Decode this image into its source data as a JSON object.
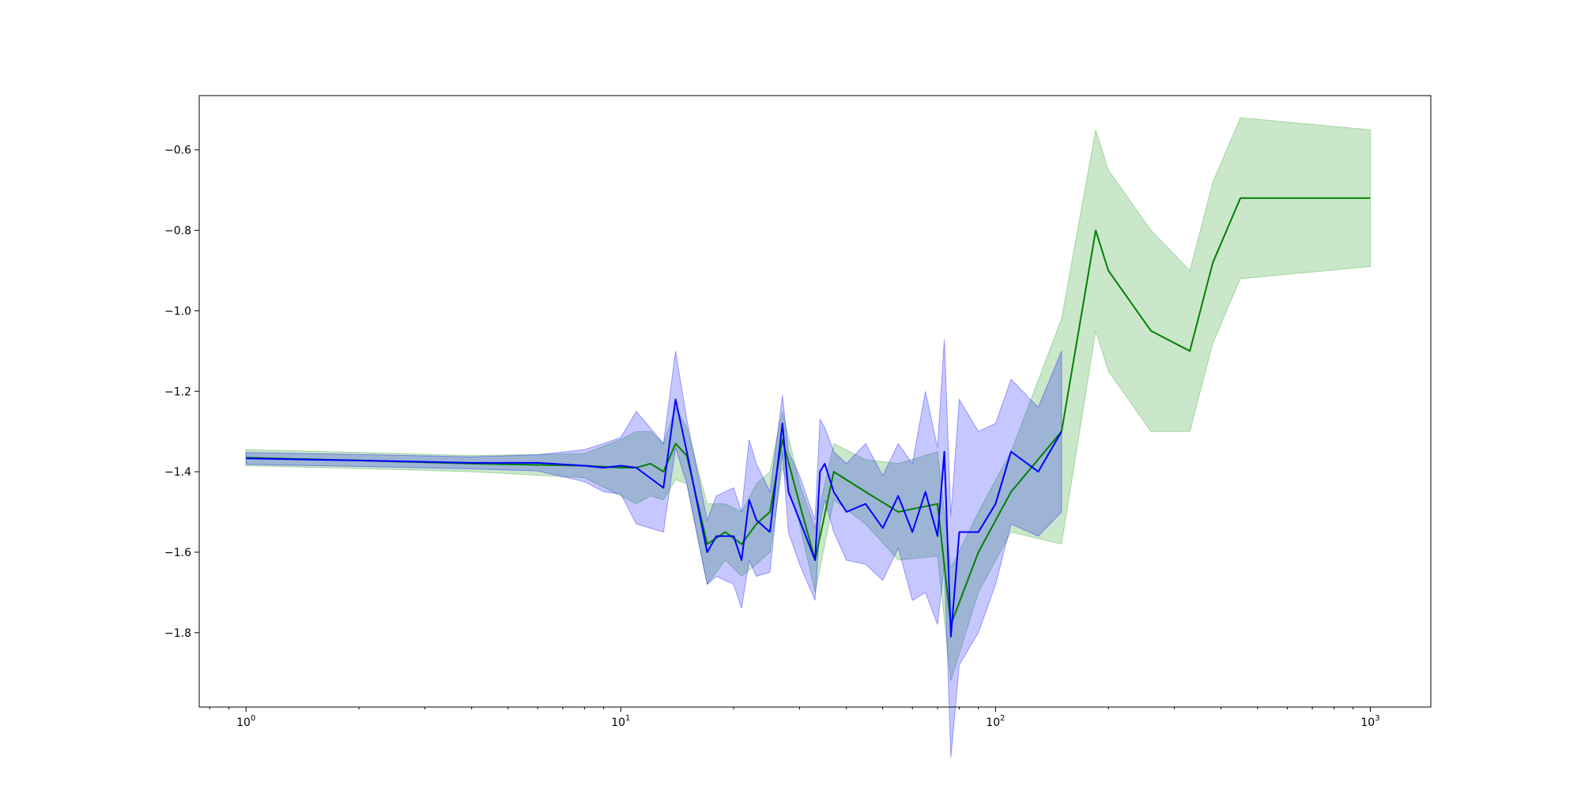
{
  "chart_data": {
    "type": "line",
    "title": "",
    "xlabel": "",
    "ylabel": "",
    "xscale": "log",
    "xlim": [
      0.75,
      1450
    ],
    "ylim": [
      -1.985,
      -0.465
    ],
    "grid": false,
    "legend": "none",
    "x_ticks": [
      {
        "value": 1,
        "base": "10",
        "exp": "0"
      },
      {
        "value": 10,
        "base": "10",
        "exp": "1"
      },
      {
        "value": 100,
        "base": "10",
        "exp": "2"
      },
      {
        "value": 1000,
        "base": "10",
        "exp": "3"
      }
    ],
    "y_ticks": [
      {
        "value": -1.8,
        "label": "−1.8"
      },
      {
        "value": -1.6,
        "label": "−1.6"
      },
      {
        "value": -1.4,
        "label": "−1.4"
      },
      {
        "value": -1.2,
        "label": "−1.2"
      },
      {
        "value": -1.0,
        "label": "−1.0"
      },
      {
        "value": -0.8,
        "label": "−0.8"
      },
      {
        "value": -0.6,
        "label": "−0.6"
      }
    ],
    "series": [
      {
        "color": "#008000",
        "band_color": "#2ca02c",
        "band_width": [
          0.02,
          0.02,
          0.02,
          0.03,
          0.07,
          0.09,
          0.08,
          0.07,
          0.09,
          0.07,
          0.1,
          0.07,
          0.08,
          0.1,
          0.1,
          0.07,
          0.05,
          0.08,
          0.07,
          0.08,
          0.12,
          0.13,
          0.14,
          0.1,
          0.1,
          0.28,
          0.25,
          0.25,
          0.25,
          0.2,
          0.2,
          0.2,
          0.17
        ],
        "x": [
          1,
          2,
          4,
          8,
          10,
          11,
          12,
          13,
          14,
          15,
          17,
          19,
          21,
          23,
          25,
          27,
          30,
          33,
          37,
          45,
          55,
          70,
          76,
          90,
          110,
          150,
          185,
          200,
          260,
          330,
          380,
          450,
          1000
        ],
        "y": [
          -1.365,
          -1.372,
          -1.38,
          -1.385,
          -1.39,
          -1.39,
          -1.38,
          -1.4,
          -1.33,
          -1.36,
          -1.58,
          -1.55,
          -1.58,
          -1.53,
          -1.5,
          -1.32,
          -1.48,
          -1.62,
          -1.4,
          -1.45,
          -1.5,
          -1.48,
          -1.78,
          -1.6,
          -1.45,
          -1.3,
          -0.8,
          -0.9,
          -1.05,
          -1.1,
          -0.88,
          -0.72,
          -0.72
        ]
      },
      {
        "color": "#0000ff",
        "band_color": "#0000ff",
        "band_width": [
          0.015,
          0.015,
          0.015,
          0.02,
          0.04,
          0.06,
          0.07,
          0.14,
          0.11,
          0.12,
          0.08,
          0.08,
          0.1,
          0.12,
          0.12,
          0.15,
          0.14,
          0.1,
          0.07,
          0.1,
          0.11,
          0.1,
          0.13,
          0.09,
          0.1,
          0.12,
          0.15,
          0.13,
          0.13,
          0.17,
          0.25,
          0.22,
          0.28,
          0.3,
          0.33,
          0.25,
          0.2,
          0.18,
          0.16,
          0.2
        ],
        "x": [
          1,
          2,
          4,
          6,
          8,
          9,
          10,
          11,
          13,
          14,
          15,
          17,
          18,
          20,
          21,
          22,
          23,
          25,
          27,
          28,
          30,
          33,
          34,
          35,
          37,
          40,
          45,
          50,
          55,
          60,
          65,
          70,
          73,
          76,
          80,
          90,
          100,
          110,
          130,
          150
        ],
        "y": [
          -1.367,
          -1.372,
          -1.378,
          -1.378,
          -1.385,
          -1.39,
          -1.385,
          -1.39,
          -1.44,
          -1.22,
          -1.35,
          -1.6,
          -1.56,
          -1.56,
          -1.62,
          -1.47,
          -1.52,
          -1.55,
          -1.28,
          -1.45,
          -1.52,
          -1.62,
          -1.4,
          -1.38,
          -1.45,
          -1.5,
          -1.48,
          -1.54,
          -1.46,
          -1.55,
          -1.45,
          -1.56,
          -1.35,
          -1.81,
          -1.55,
          -1.55,
          -1.48,
          -1.35,
          -1.4,
          -1.3
        ]
      }
    ]
  }
}
